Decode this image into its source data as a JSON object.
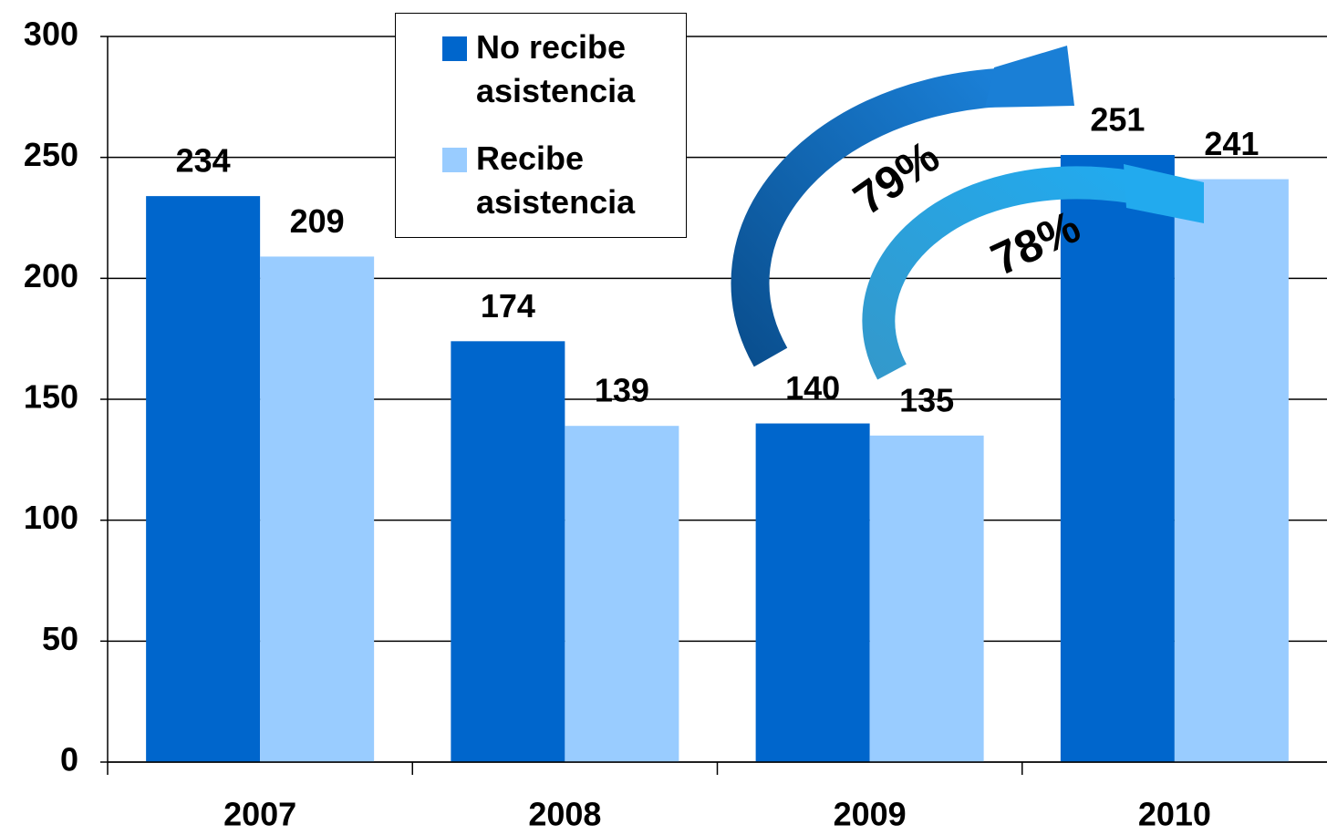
{
  "chart_data": {
    "type": "bar",
    "categories": [
      "2007",
      "2008",
      "2009",
      "2010"
    ],
    "series": [
      {
        "name": "No recibe asistencia",
        "color": "#0066cc",
        "values": [
          234,
          174,
          140,
          251
        ]
      },
      {
        "name": "Recibe asistencia",
        "color": "#99ccff",
        "values": [
          209,
          139,
          135,
          241
        ]
      }
    ],
    "ylim": [
      0,
      300
    ],
    "yticks": [
      0,
      50,
      100,
      150,
      200,
      250,
      300
    ],
    "grid": true,
    "legend": "top",
    "annotations": [
      "79%",
      "78%"
    ]
  }
}
